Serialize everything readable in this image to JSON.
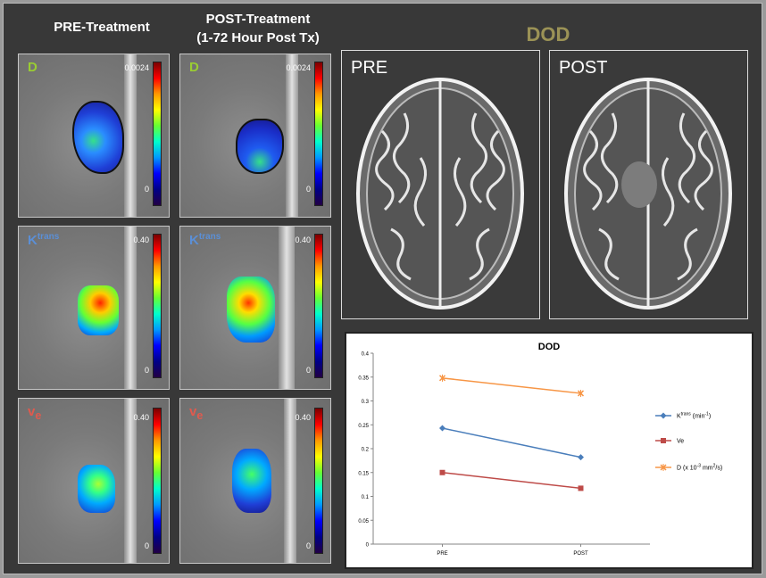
{
  "headers": {
    "pre_treatment": "PRE-Treatment",
    "post_treatment_line1": "POST-Treatment",
    "post_treatment_line2": "(1-72 Hour Post Tx)",
    "dod": "DOD"
  },
  "map_panels": [
    {
      "label": "D",
      "sup": "",
      "sub": "",
      "label_color": "#9acd32",
      "cb_max": "0.0024",
      "cb_min": "0"
    },
    {
      "label": "D",
      "sup": "",
      "sub": "",
      "label_color": "#9acd32",
      "cb_max": "0.0024",
      "cb_min": "0"
    },
    {
      "label": "K",
      "sup": "trans",
      "sub": "",
      "label_color": "#5b8fd6",
      "cb_max": "0.40",
      "cb_min": "0"
    },
    {
      "label": "K",
      "sup": "trans",
      "sub": "",
      "label_color": "#5b8fd6",
      "cb_max": "0.40",
      "cb_min": "0"
    },
    {
      "label": "v",
      "sup": "",
      "sub": "e",
      "label_color": "#e05a4e",
      "cb_max": "0.40",
      "cb_min": "0"
    },
    {
      "label": "v",
      "sup": "",
      "sub": "e",
      "label_color": "#e05a4e",
      "cb_max": "0.40",
      "cb_min": "0"
    }
  ],
  "brain_images": {
    "pre_label": "PRE",
    "post_label": "POST"
  },
  "chart_data": {
    "type": "line",
    "title": "DOD",
    "categories": [
      "PRE",
      "POST"
    ],
    "ylim": [
      0,
      0.4
    ],
    "yticks": [
      "0",
      "0.05",
      "0.1",
      "0.15",
      "0.2",
      "0.25",
      "0.3",
      "0.35",
      "0.4"
    ],
    "legend_placement": "right",
    "series": [
      {
        "name_main": "K",
        "name_sup": "trans",
        "name_rest": " (min",
        "name_sup2": "-1",
        "name_end": ")",
        "values": [
          0.243,
          0.182
        ],
        "color": "#4a7ebb",
        "marker": "diamond"
      },
      {
        "name_main": "Ve",
        "name_sup": "",
        "name_rest": "",
        "name_sup2": "",
        "name_end": "",
        "values": [
          0.15,
          0.117
        ],
        "color": "#be4b48",
        "marker": "square"
      },
      {
        "name_main": "D (x 10",
        "name_sup": "-3",
        "name_rest": " mm",
        "name_sup2": "2",
        "name_end": "/s)",
        "values": [
          0.348,
          0.316
        ],
        "color": "#f79646",
        "marker": "x"
      }
    ]
  }
}
